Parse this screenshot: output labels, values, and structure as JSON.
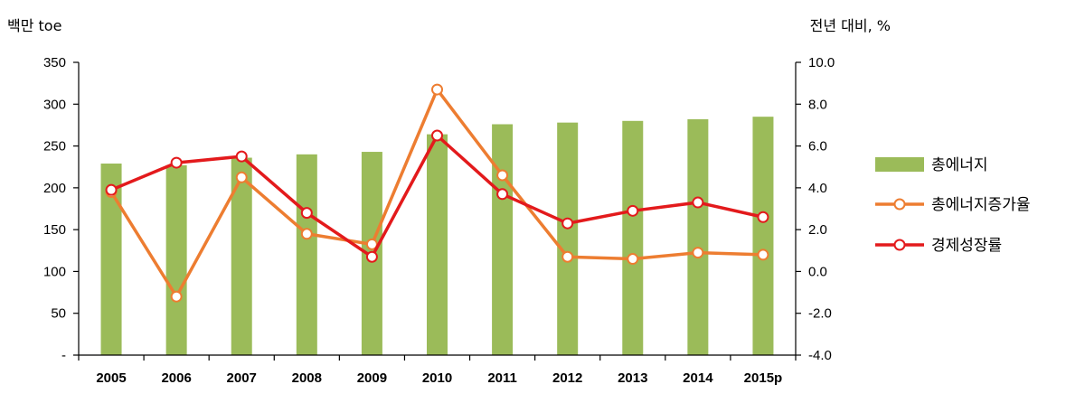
{
  "chart_data": {
    "type": "bar+line",
    "categories": [
      "2005",
      "2006",
      "2007",
      "2008",
      "2009",
      "2010",
      "2011",
      "2012",
      "2013",
      "2014",
      "2015p"
    ],
    "left_axis": {
      "unit_label": "백만 toe",
      "ylim": [
        0,
        350
      ],
      "ticks": [
        0,
        50,
        100,
        150,
        200,
        250,
        300,
        350
      ],
      "tick_labels": [
        "-",
        "50",
        "100",
        "150",
        "200",
        "250",
        "300",
        "350"
      ]
    },
    "right_axis": {
      "unit_label": "전년 대비, %",
      "ylim": [
        -4.0,
        10.0
      ],
      "ticks": [
        -4,
        -2,
        0,
        2,
        4,
        6,
        8,
        10
      ],
      "tick_labels": [
        "-4.0",
        "-2.0",
        "0.0",
        "2.0",
        "4.0",
        "6.0",
        "8.0",
        "10.0"
      ]
    },
    "series": [
      {
        "name": "총에너지",
        "type": "bar",
        "axis": "left",
        "color": "#9bbb59",
        "values": [
          229,
          227,
          236,
          240,
          243,
          264,
          276,
          278,
          280,
          282,
          285
        ]
      },
      {
        "name": "총에너지증가율",
        "type": "line",
        "axis": "right",
        "color": "#ed7d31",
        "values": [
          3.8,
          -1.2,
          4.5,
          1.8,
          1.3,
          8.7,
          4.6,
          0.7,
          0.6,
          0.9,
          0.8
        ]
      },
      {
        "name": "경제성장률",
        "type": "line",
        "axis": "right",
        "color": "#e31a1c",
        "values": [
          3.9,
          5.2,
          5.5,
          2.8,
          0.7,
          6.5,
          3.7,
          2.3,
          2.9,
          3.3,
          2.6
        ]
      }
    ],
    "legend": "right",
    "grid": false
  }
}
